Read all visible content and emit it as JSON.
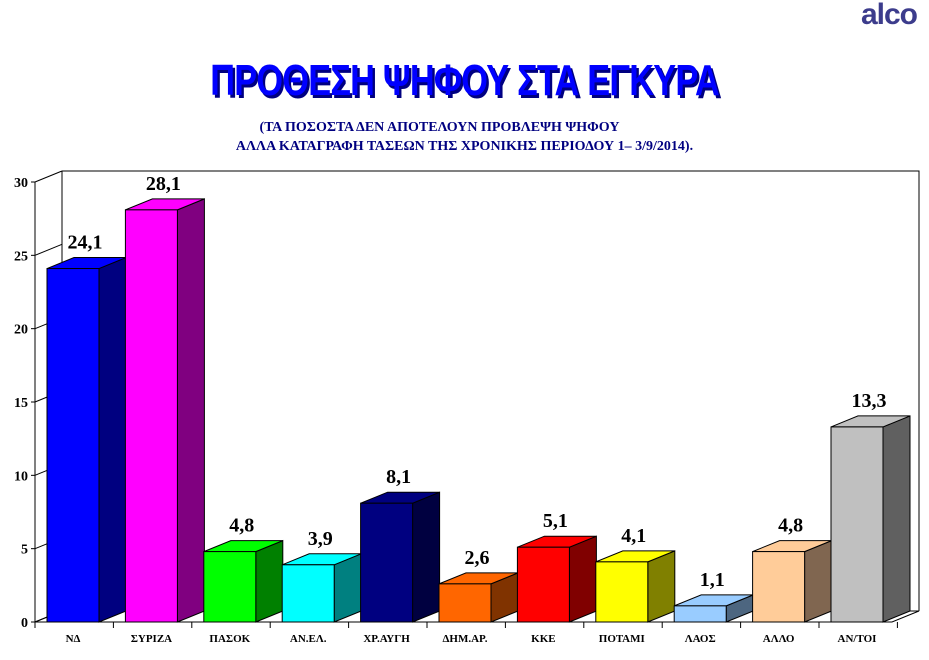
{
  "logo": "alco",
  "chart_data": {
    "type": "bar",
    "title": "ΠΡΟΘΕΣΗ ΨΗΦΟΥ ΣΤΑ ΕΓΚΥΡΑ",
    "subtitle": [
      "(ΤΑ ΠΟΣΟΣΤΑ ΔΕΝ ΑΠΟΤΕΛΟΥΝ ΠΡΟΒΛΕΨΗ ΨΗΦΟΥ",
      "ΑΛΛΑ ΚΑΤΑΓΡΑΦΗ ΤΑΣΕΩΝ ΤΗΣ ΧΡΟΝΙΚΗΣ ΠΕΡΙΟΔΟΥ 1– 3/9/2014)."
    ],
    "categories": [
      "ΝΔ",
      "ΣΥΡΙΖΑ",
      "ΠΑΣΟΚ",
      "ΑΝ.ΕΛ.",
      "ΧΡ.ΑΥΓΗ",
      "ΔΗΜ.ΑΡ.",
      "ΚΚΕ",
      "ΠΟΤΑΜΙ",
      "ΛΑΟΣ",
      "ΑΛΛΟ",
      "ΑΝ/ΤΟΙ"
    ],
    "values": [
      24.1,
      28.1,
      4.8,
      3.9,
      8.1,
      2.6,
      5.1,
      4.1,
      1.1,
      4.8,
      13.3
    ],
    "data_labels": [
      "24,1",
      "28,1",
      "4,8",
      "3,9",
      "8,1",
      "2,6",
      "5,1",
      "4,1",
      "1,1",
      "4,8",
      "13,3"
    ],
    "colors": [
      "#0000ff",
      "#ff00ff",
      "#00ff00",
      "#00ffff",
      "#000080",
      "#ff6600",
      "#ff0000",
      "#ffff00",
      "#99ccff",
      "#ffcc99",
      "#c0c0c0"
    ],
    "side_colors": [
      "#000080",
      "#800080",
      "#008000",
      "#008080",
      "#000040",
      "#803300",
      "#800000",
      "#808000",
      "#4d6680",
      "#806650",
      "#606060"
    ],
    "yticks": [
      0,
      5,
      10,
      15,
      20,
      25,
      30
    ],
    "ylim": [
      0,
      30
    ],
    "style": "3d-bar",
    "grid": false
  }
}
